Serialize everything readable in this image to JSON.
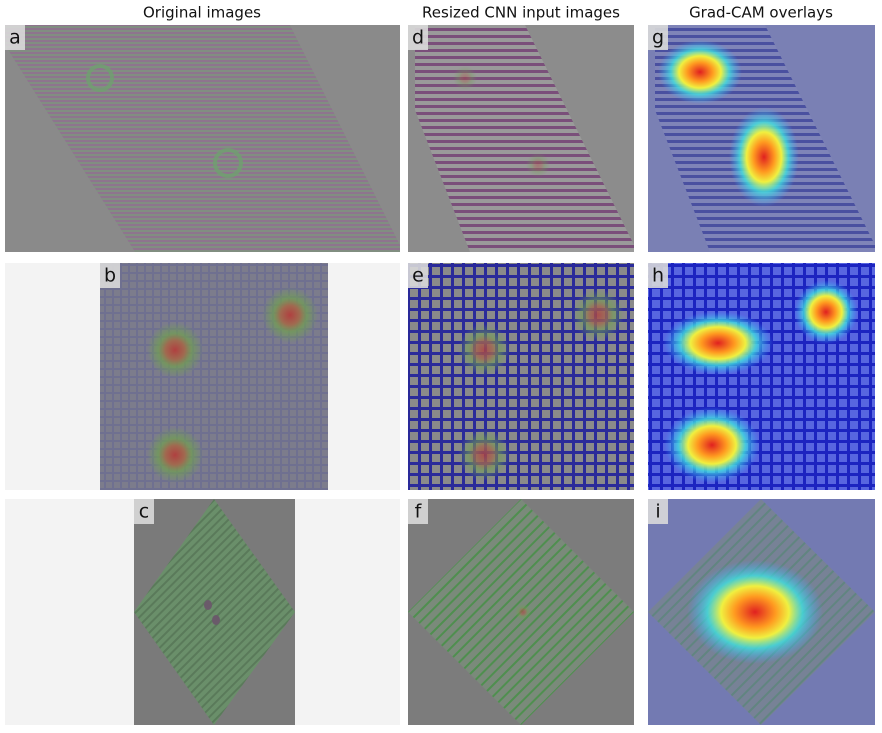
{
  "columns": [
    "Original images",
    "Resized CNN input images",
    "Grad-CAM overlays"
  ],
  "panels": [
    {
      "label": "a"
    },
    {
      "label": "b"
    },
    {
      "label": "c"
    },
    {
      "label": "d"
    },
    {
      "label": "e"
    },
    {
      "label": "f"
    },
    {
      "label": "g"
    },
    {
      "label": "h"
    },
    {
      "label": "i"
    }
  ]
}
